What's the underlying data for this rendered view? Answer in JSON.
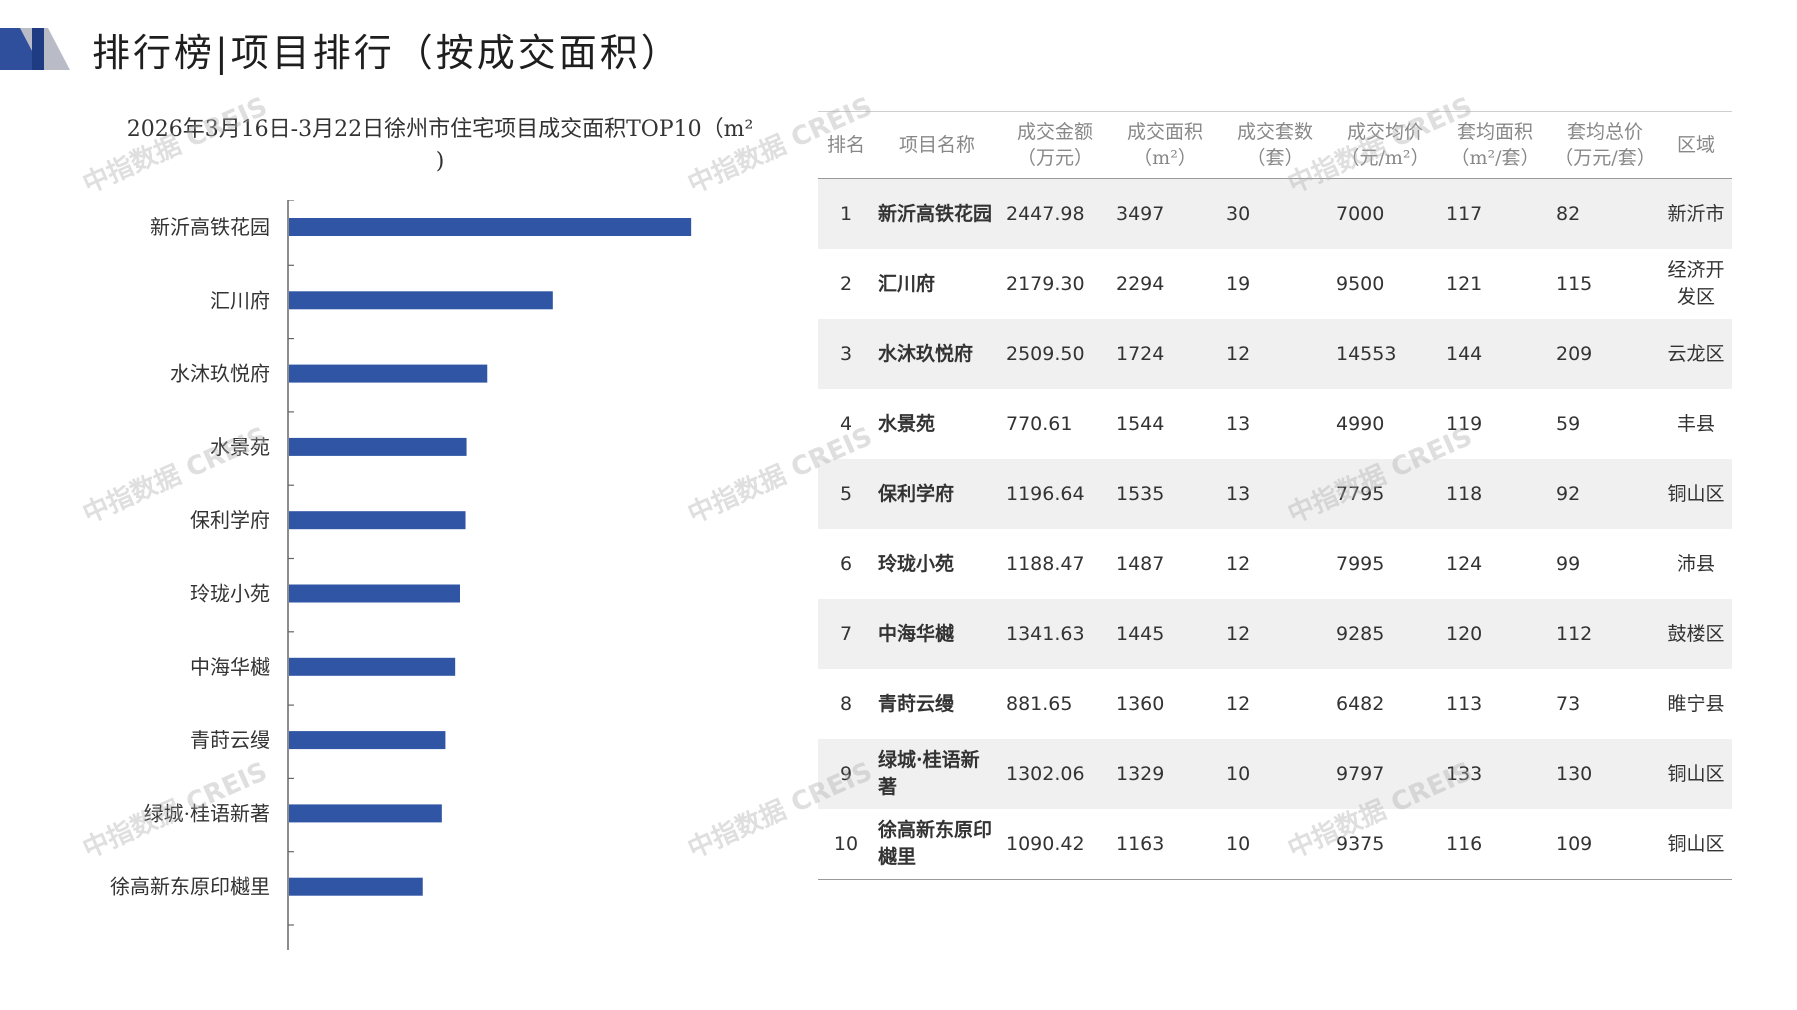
{
  "header": {
    "title": "排行榜|项目排行（按成交面积）"
  },
  "chart": {
    "title_line1": "2026年3月16日-3月22日徐州市住宅项目成交面积TOP10（m²",
    "title_line2": ")"
  },
  "chart_data": {
    "type": "bar",
    "orientation": "horizontal",
    "title": "2026年3月16日-3月22日徐州市住宅项目成交面积TOP10（m²)",
    "categories": [
      "新沂高铁花园",
      "汇川府",
      "水沐玖悦府",
      "水景苑",
      "保利学府",
      "玲珑小苑",
      "中海华樾",
      "青莳云缦",
      "绿城·桂语新著",
      "徐高新东原印樾里"
    ],
    "values": [
      3497,
      2294,
      1724,
      1544,
      1535,
      1487,
      1445,
      1360,
      1329,
      1163
    ],
    "xlim": [
      0,
      4000
    ],
    "bar_color": "#2f55a4",
    "grid": false,
    "legend": "none"
  },
  "table": {
    "headers": [
      {
        "l1": "排名",
        "l2": ""
      },
      {
        "l1": "项目名称",
        "l2": ""
      },
      {
        "l1": "成交金额",
        "l2": "（万元）"
      },
      {
        "l1": "成交面积",
        "l2": "（m²）"
      },
      {
        "l1": "成交套数",
        "l2": "（套）"
      },
      {
        "l1": "成交均价",
        "l2": "（元/m²）"
      },
      {
        "l1": "套均面积",
        "l2": "（m²/套）"
      },
      {
        "l1": "套均总价",
        "l2": "（万元/套）"
      },
      {
        "l1": "区域",
        "l2": ""
      }
    ],
    "rows": [
      {
        "rank": "1",
        "name": "新沂高铁花园",
        "amount": "2447.98",
        "area": "3497",
        "units": "30",
        "price": "7000",
        "avg_area": "117",
        "avg_total": "82",
        "district": "新沂市"
      },
      {
        "rank": "2",
        "name": "汇川府",
        "amount": "2179.30",
        "area": "2294",
        "units": "19",
        "price": "9500",
        "avg_area": "121",
        "avg_total": "115",
        "district": "经济开发区"
      },
      {
        "rank": "3",
        "name": "水沐玖悦府",
        "amount": "2509.50",
        "area": "1724",
        "units": "12",
        "price": "14553",
        "avg_area": "144",
        "avg_total": "209",
        "district": "云龙区"
      },
      {
        "rank": "4",
        "name": "水景苑",
        "amount": "770.61",
        "area": "1544",
        "units": "13",
        "price": "4990",
        "avg_area": "119",
        "avg_total": "59",
        "district": "丰县"
      },
      {
        "rank": "5",
        "name": "保利学府",
        "amount": "1196.64",
        "area": "1535",
        "units": "13",
        "price": "7795",
        "avg_area": "118",
        "avg_total": "92",
        "district": "铜山区"
      },
      {
        "rank": "6",
        "name": "玲珑小苑",
        "amount": "1188.47",
        "area": "1487",
        "units": "12",
        "price": "7995",
        "avg_area": "124",
        "avg_total": "99",
        "district": "沛县"
      },
      {
        "rank": "7",
        "name": "中海华樾",
        "amount": "1341.63",
        "area": "1445",
        "units": "12",
        "price": "9285",
        "avg_area": "120",
        "avg_total": "112",
        "district": "鼓楼区"
      },
      {
        "rank": "8",
        "name": "青莳云缦",
        "amount": "881.65",
        "area": "1360",
        "units": "12",
        "price": "6482",
        "avg_area": "113",
        "avg_total": "73",
        "district": "睢宁县"
      },
      {
        "rank": "9",
        "name": "绿城·桂语新著",
        "amount": "1302.06",
        "area": "1329",
        "units": "10",
        "price": "9797",
        "avg_area": "133",
        "avg_total": "130",
        "district": "铜山区"
      },
      {
        "rank": "10",
        "name": "徐高新东原印樾里",
        "amount": "1090.42",
        "area": "1163",
        "units": "10",
        "price": "9375",
        "avg_area": "116",
        "avg_total": "109",
        "district": "铜山区"
      }
    ]
  },
  "watermark": {
    "text": "中指数据 CREIS"
  }
}
